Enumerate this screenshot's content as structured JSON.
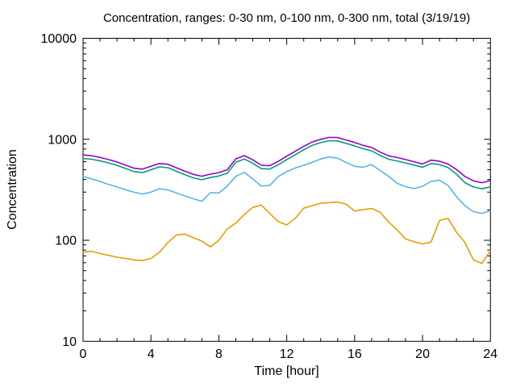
{
  "figure": {
    "title": "Concentration, ranges: 0-30 nm, 0-100 nm, 0-300 nm, total (3/19/19)",
    "xlabel": "Time [hour]",
    "ylabel": "Concentration"
  },
  "chart_data": {
    "type": "line",
    "title": "Concentration, ranges: 0-30 nm, 0-100 nm, 0-300 nm, total (3/19/19)",
    "xlabel": "Time [hour]",
    "ylabel": "Concentration",
    "x_range": [
      0,
      24
    ],
    "y_range": [
      10,
      10000
    ],
    "y_scale": "log10",
    "x_ticks_major": [
      0,
      4,
      8,
      12,
      16,
      20,
      24
    ],
    "x_ticks_minor_step": 1,
    "y_ticks_major": [
      10,
      100,
      1000,
      10000
    ],
    "y_minor_ticks": "log decades 2-9",
    "grid": false,
    "legend_position": "none (series listed in title)",
    "background_color": "#ffffff",
    "frame_color": "#000000",
    "x": [
      0,
      0.5,
      1,
      1.5,
      2,
      2.5,
      3,
      3.5,
      4,
      4.5,
      5,
      5.5,
      6,
      6.5,
      7,
      7.5,
      8,
      8.5,
      9,
      9.5,
      10,
      10.5,
      11,
      11.5,
      12,
      12.5,
      13,
      13.5,
      14,
      14.5,
      15,
      15.5,
      16,
      16.5,
      17,
      17.5,
      18,
      18.5,
      19,
      19.5,
      20,
      20.5,
      21,
      21.5,
      22,
      22.5,
      23,
      23.5,
      24
    ],
    "series": [
      {
        "name": "0-30 nm",
        "color": "#e69f00",
        "values": [
          76,
          78,
          74,
          71,
          68,
          66,
          64,
          63,
          66,
          76,
          95,
          113,
          115,
          106,
          98,
          86,
          100,
          130,
          148,
          180,
          212,
          223,
          185,
          153,
          142,
          165,
          208,
          220,
          233,
          236,
          239,
          228,
          195,
          201,
          207,
          190,
          152,
          127,
          103,
          97,
          92,
          96,
          157,
          165,
          120,
          95,
          64,
          59,
          79
        ]
      },
      {
        "name": "0-100 nm",
        "color": "#56b4e9",
        "values": [
          428,
          406,
          383,
          358,
          337,
          317,
          299,
          287,
          300,
          324,
          315,
          295,
          275,
          258,
          243,
          296,
          294,
          345,
          430,
          470,
          405,
          345,
          350,
          428,
          478,
          520,
          553,
          592,
          638,
          668,
          650,
          590,
          540,
          528,
          562,
          492,
          430,
          368,
          340,
          325,
          342,
          382,
          394,
          350,
          270,
          220,
          192,
          185,
          196
        ]
      },
      {
        "name": "0-300 nm",
        "color": "#009e73",
        "values": [
          645,
          635,
          612,
          584,
          552,
          515,
          480,
          468,
          500,
          533,
          523,
          483,
          447,
          415,
          398,
          418,
          433,
          462,
          592,
          638,
          580,
          512,
          507,
          559,
          630,
          704,
          787,
          870,
          926,
          968,
          963,
          912,
          861,
          806,
          769,
          693,
          635,
          611,
          583,
          556,
          528,
          576,
          562,
          526,
          452,
          372,
          337,
          323,
          339
        ]
      },
      {
        "name": "total",
        "color": "#9400d3",
        "values": [
          700,
          688,
          662,
          630,
          596,
          556,
          518,
          506,
          540,
          576,
          566,
          522,
          483,
          449,
          431,
          452,
          468,
          500,
          640,
          690,
          627,
          553,
          548,
          604,
          680,
          760,
          850,
          940,
          1000,
          1045,
          1040,
          985,
          930,
          870,
          830,
          748,
          686,
          660,
          630,
          600,
          570,
          622,
          607,
          568,
          502,
          428,
          388,
          372,
          390
        ]
      }
    ]
  }
}
